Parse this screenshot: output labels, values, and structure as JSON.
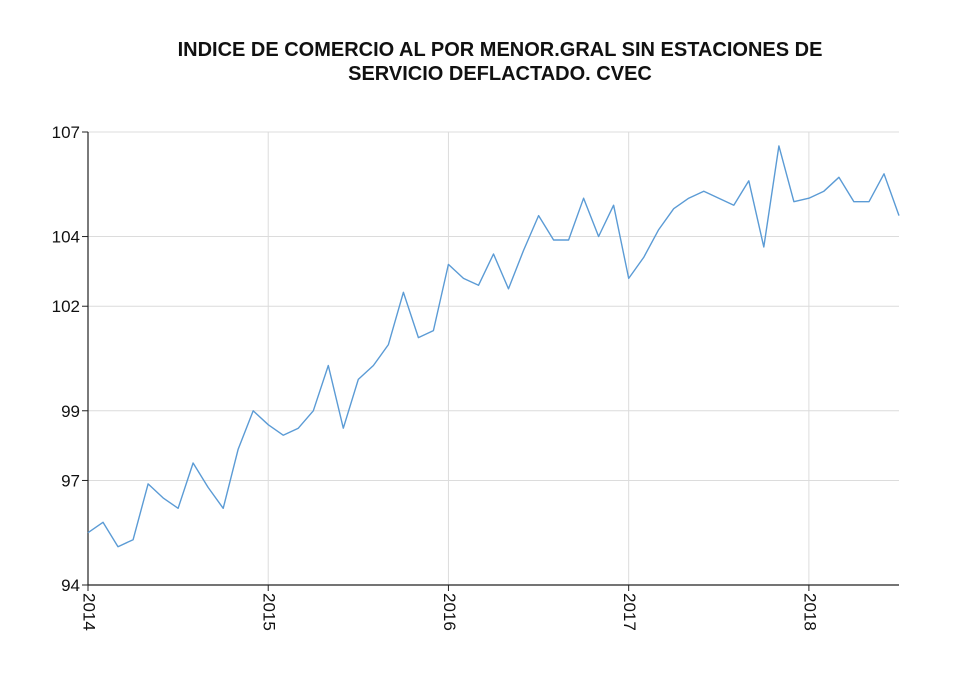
{
  "chart_data": {
    "type": "line",
    "title_lines": [
      "INDICE DE COMERCIO AL POR MENOR.GRAL SIN ESTACIONES DE",
      "SERVICIO DEFLACTADO. CVEC"
    ],
    "xlabel": "",
    "ylabel": "",
    "x_ticks": [
      "2014",
      "2015",
      "2016",
      "2017",
      "2018"
    ],
    "y_ticks": [
      "94",
      "97",
      "99",
      "102",
      "104",
      "107"
    ],
    "ylim": [
      94,
      107
    ],
    "grid": true,
    "legend": "none",
    "series": [
      {
        "color": "#5b9bd5",
        "x": [
          "2014-01",
          "2014-02",
          "2014-03",
          "2014-04",
          "2014-05",
          "2014-06",
          "2014-07",
          "2014-08",
          "2014-09",
          "2014-10",
          "2014-11",
          "2014-12",
          "2015-01",
          "2015-02",
          "2015-03",
          "2015-04",
          "2015-05",
          "2015-06",
          "2015-07",
          "2015-08",
          "2015-09",
          "2015-10",
          "2015-11",
          "2015-12",
          "2016-01",
          "2016-02",
          "2016-03",
          "2016-04",
          "2016-05",
          "2016-06",
          "2016-07",
          "2016-08",
          "2016-09",
          "2016-10",
          "2016-11",
          "2016-12",
          "2017-01",
          "2017-02",
          "2017-03",
          "2017-04",
          "2017-05",
          "2017-06",
          "2017-07",
          "2017-08",
          "2017-09",
          "2017-10",
          "2017-11",
          "2017-12",
          "2018-01",
          "2018-02",
          "2018-03",
          "2018-04",
          "2018-05",
          "2018-06",
          "2018-07"
        ],
        "values": [
          95.5,
          95.8,
          95.1,
          95.3,
          96.9,
          96.5,
          96.2,
          97.5,
          96.8,
          96.2,
          97.9,
          99.0,
          98.6,
          98.3,
          98.5,
          99.0,
          100.3,
          98.5,
          99.9,
          100.3,
          100.9,
          102.4,
          101.1,
          101.3,
          103.2,
          102.8,
          102.6,
          103.5,
          102.5,
          103.6,
          104.6,
          103.9,
          103.9,
          105.1,
          104.0,
          104.9,
          102.8,
          103.4,
          104.2,
          104.8,
          105.1,
          105.3,
          105.1,
          104.9,
          105.6,
          103.7,
          106.6,
          105.0,
          105.1,
          105.3,
          105.7,
          105.0,
          105.0,
          105.8,
          104.6
        ]
      }
    ]
  }
}
